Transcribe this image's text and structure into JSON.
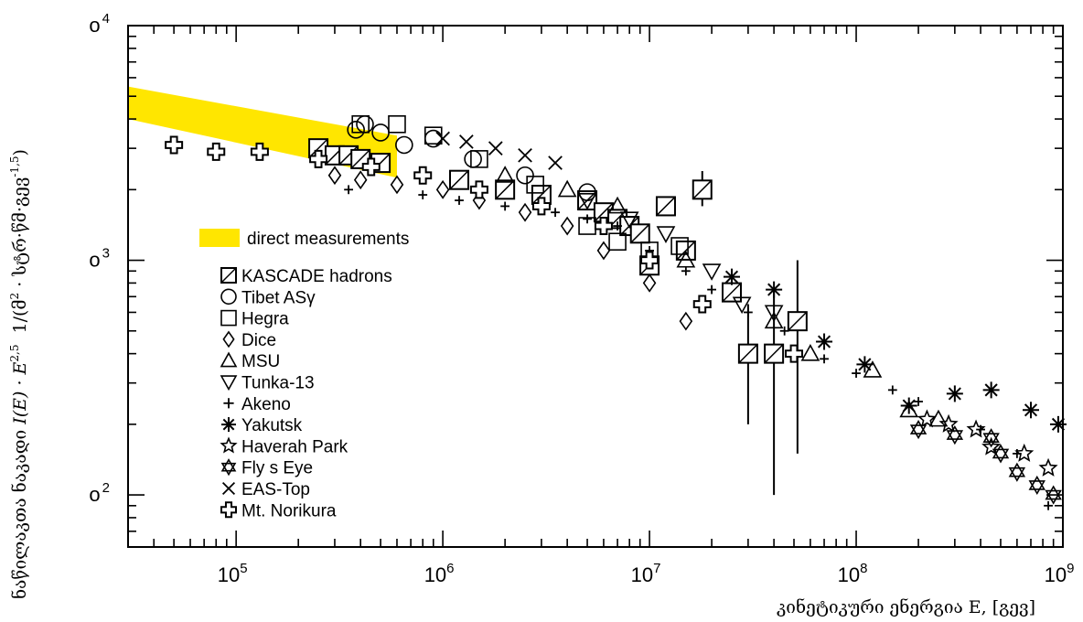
{
  "chart_data": {
    "type": "scatter",
    "title": "",
    "xlabel": "კინეტიკური ენერგია E, [გევ]",
    "ylabel": "ნაწილაკების ნაკადი I(E) · E^2,5 1/(მ² · სტრ·წმ·გევ^-1,5)",
    "ylabel_parts": {
      "lead": "ნაწილაკთა ნაკადი ",
      "formula": "I(E) · E",
      "exp": "2,5",
      "units_lead": "1/(მ",
      "units_sup1": "2",
      "units_mid": " · სტრ·წმ·გევ",
      "units_sup2": "-1,5",
      "units_tail": ")"
    },
    "xscale": "log",
    "yscale": "log",
    "xlim": [
      30000,
      1000000000
    ],
    "ylim": [
      60,
      10000
    ],
    "x_tick_labels": [
      {
        "base": "10",
        "exp": "5",
        "value": 100000
      },
      {
        "base": "10",
        "exp": "6",
        "value": 1000000
      },
      {
        "base": "10",
        "exp": "7",
        "value": 10000000
      },
      {
        "base": "10",
        "exp": "8",
        "value": 100000000
      },
      {
        "base": "10",
        "exp": "9",
        "value": 1000000000
      }
    ],
    "y_tick_labels": [
      {
        "text": "o 4",
        "value": 10000
      },
      {
        "text": "o 3",
        "value": 1000
      },
      {
        "text": "o 2",
        "value": 100
      }
    ],
    "band": {
      "name": "direct measurements",
      "color": "#ffe600",
      "x": [
        30000,
        600000
      ],
      "upper": [
        5500,
        3400
      ],
      "lower": [
        4000,
        2250
      ]
    },
    "series": [
      {
        "name": "KASCADE hadrons",
        "marker": "boxslash",
        "x": [
          250000,
          300000,
          350000,
          400000,
          500000,
          1200000,
          2000000,
          3000000,
          5000000,
          6000000,
          7000000,
          8000000,
          9000000,
          10000000,
          12000000,
          15000000,
          18000000,
          25000000,
          30000000,
          40000000,
          52000000
        ],
        "y": [
          3000,
          2800,
          2800,
          2700,
          2600,
          2200,
          2000,
          1900,
          1800,
          1600,
          1500,
          1400,
          1300,
          950,
          1700,
          1100,
          2000,
          730,
          400,
          400,
          550
        ],
        "err": [
          null,
          null,
          null,
          null,
          null,
          null,
          null,
          null,
          null,
          null,
          null,
          null,
          null,
          null,
          null,
          null,
          [
            1700,
            2400
          ],
          null,
          [
            200,
            650
          ],
          [
            100,
            750
          ],
          [
            150,
            1000
          ]
        ]
      },
      {
        "name": "Tibet ASγ",
        "marker": "circle",
        "x": [
          380000,
          420000,
          500000,
          650000,
          900000,
          1400000,
          2500000,
          5000000
        ],
        "y": [
          3600,
          3800,
          3500,
          3100,
          3300,
          2700,
          2300,
          1950
        ]
      },
      {
        "name": "Hegra",
        "marker": "square",
        "x": [
          400000,
          600000,
          900000,
          1500000,
          2800000,
          5000000,
          7000000,
          10000000,
          14000000
        ],
        "y": [
          3800,
          3800,
          3400,
          2700,
          2100,
          1400,
          1200,
          1100,
          1150
        ]
      },
      {
        "name": "Dice",
        "marker": "diamond",
        "x": [
          300000,
          400000,
          600000,
          1000000,
          1500000,
          2500000,
          4000000,
          6000000,
          10000000,
          15000000
        ],
        "y": [
          2300,
          2200,
          2100,
          2000,
          1800,
          1600,
          1400,
          1100,
          800,
          550
        ]
      },
      {
        "name": "MSU",
        "marker": "triangle",
        "x": [
          2000000,
          4000000,
          7000000,
          15000000,
          40000000,
          60000000,
          120000000,
          180000000,
          250000000
        ],
        "y": [
          2300,
          2000,
          1700,
          1000,
          550,
          400,
          340,
          230,
          210
        ]
      },
      {
        "name": "Tunka-13",
        "marker": "triangledown",
        "x": [
          5000000,
          8000000,
          12000000,
          20000000,
          28000000,
          40000000
        ],
        "y": [
          1800,
          1500,
          1300,
          900,
          650,
          600
        ]
      },
      {
        "name": "Akeno",
        "marker": "plus",
        "x": [
          350000,
          800000,
          1200000,
          2000000,
          3500000,
          5000000,
          7000000,
          10000000,
          15000000,
          20000000,
          30000000,
          45000000,
          70000000,
          100000000,
          150000000,
          200000000,
          400000000,
          600000000,
          850000000
        ],
        "y": [
          2000,
          1900,
          1800,
          1700,
          1600,
          1500,
          1400,
          1100,
          900,
          750,
          600,
          500,
          380,
          330,
          280,
          250,
          190,
          150,
          90
        ]
      },
      {
        "name": "Yakutsk",
        "marker": "star8",
        "x": [
          25000000,
          40000000,
          70000000,
          110000000,
          180000000,
          300000000,
          450000000,
          700000000,
          950000000
        ],
        "y": [
          850,
          750,
          450,
          360,
          240,
          270,
          280,
          230,
          200
        ]
      },
      {
        "name": "Haverah Park",
        "marker": "star5",
        "x": [
          220000000,
          280000000,
          380000000,
          450000000,
          650000000,
          850000000
        ],
        "y": [
          210,
          200,
          190,
          160,
          150,
          130
        ]
      },
      {
        "name": "Fly   s Eye",
        "marker": "star6",
        "x": [
          200000000,
          300000000,
          450000000,
          500000000,
          600000000,
          750000000,
          900000000
        ],
        "y": [
          190,
          180,
          175,
          150,
          125,
          110,
          100
        ]
      },
      {
        "name": "EAS-Top",
        "marker": "xcross",
        "x": [
          1000000,
          1300000,
          1800000,
          2500000,
          3500000
        ],
        "y": [
          3300,
          3200,
          3000,
          2800,
          2600
        ]
      },
      {
        "name": "Mt. Norikura",
        "marker": "pluscross",
        "x": [
          50000,
          80000,
          130000,
          250000,
          450000,
          800000,
          1500000,
          3000000,
          6000000,
          10000000,
          18000000,
          50000000
        ],
        "y": [
          3100,
          2900,
          2900,
          2700,
          2500,
          2300,
          2000,
          1700,
          1400,
          1000,
          650,
          400
        ]
      }
    ]
  }
}
